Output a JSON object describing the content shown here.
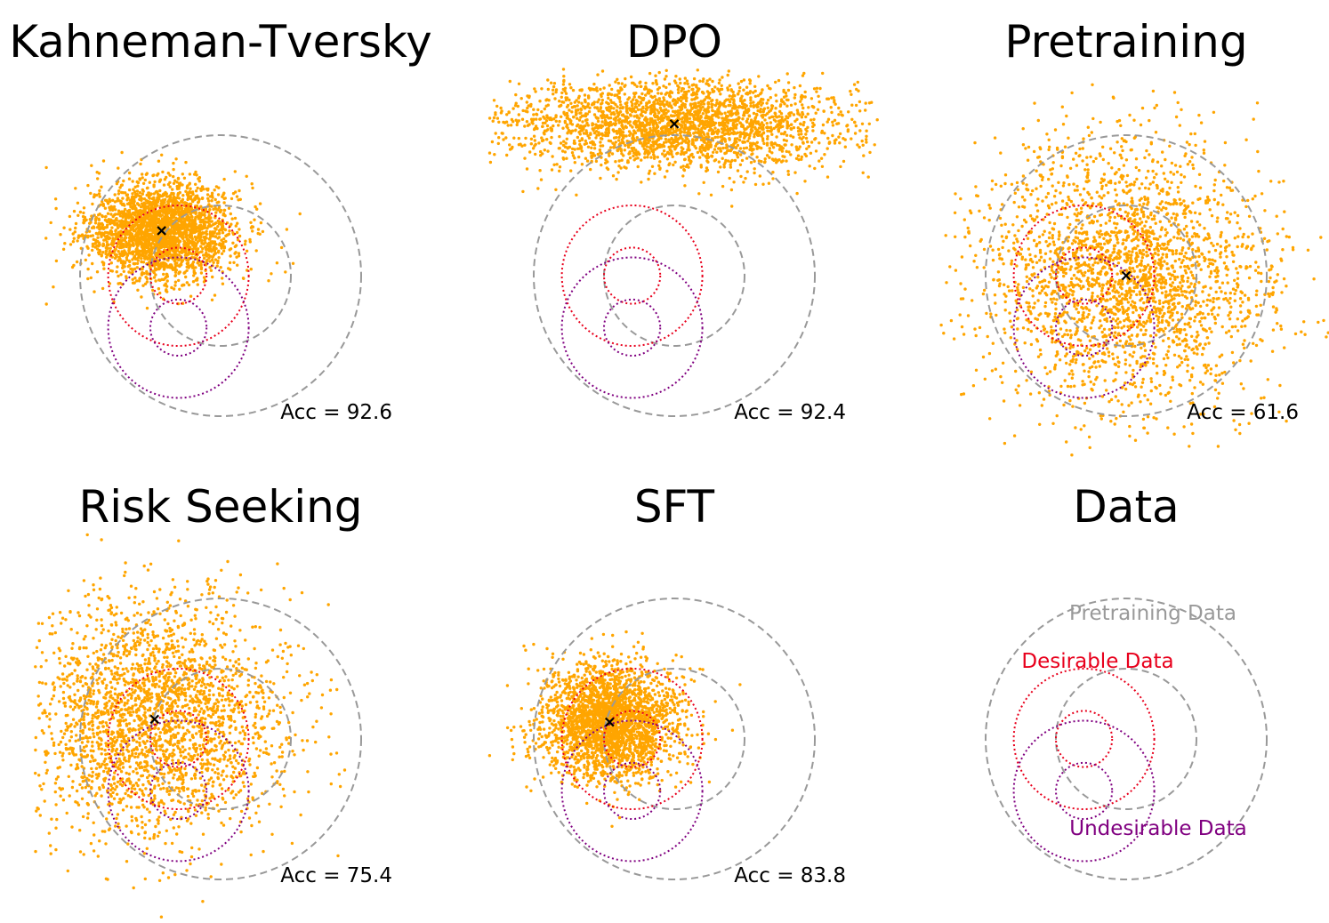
{
  "chart_data": [
    {
      "type": "scatter",
      "title": "Kahneman-Tversky",
      "accuracy_text": "Acc = 92.6",
      "accuracy": 92.6,
      "samples": {
        "center": [
          -0.42,
          0.32
        ],
        "spread": [
          0.26,
          0.17
        ],
        "n": 2600
      },
      "model_mean": [
        -0.42,
        0.32
      ]
    },
    {
      "type": "scatter",
      "title": "DPO",
      "accuracy_text": "Acc = 92.4",
      "accuracy": 92.4,
      "samples": {
        "center": [
          0.0,
          1.08
        ],
        "spread": [
          0.6,
          0.16
        ],
        "n": 2600
      },
      "model_mean": [
        0.0,
        1.08
      ]
    },
    {
      "type": "scatter",
      "title": "Pretraining",
      "accuracy_text": "Acc = 61.6",
      "accuracy": 61.6,
      "samples": {
        "center": [
          0.0,
          0.0
        ],
        "spread": [
          0.5,
          0.48
        ],
        "n": 2600
      },
      "model_mean": [
        0.0,
        0.0
      ]
    },
    {
      "type": "scatter",
      "title": "Risk Seeking",
      "accuracy_text": "Acc = 75.4",
      "accuracy": 75.4,
      "samples": {
        "center": [
          -0.47,
          0.14
        ],
        "spread": [
          0.45,
          0.42
        ],
        "n": 2600
      },
      "model_mean": [
        -0.47,
        0.14
      ]
    },
    {
      "type": "scatter",
      "title": "SFT",
      "accuracy_text": "Acc = 83.8",
      "accuracy": 83.8,
      "samples": {
        "center": [
          -0.46,
          0.12
        ],
        "spread": [
          0.24,
          0.2
        ],
        "n": 2600
      },
      "model_mean": [
        -0.46,
        0.12
      ]
    },
    {
      "type": "scatter",
      "title": "Data",
      "legend": {
        "pretraining": "Pretraining Data",
        "desirable": "Desirable Data",
        "undesirable": "Undesirable Data"
      }
    }
  ],
  "regions": {
    "pretraining": {
      "center": [
        0.0,
        0.0
      ],
      "radius": 1.0
    },
    "pretraining_inner": {
      "center": [
        0.0,
        0.0
      ],
      "radius": 0.5
    },
    "desirable": [
      {
        "center": [
          -0.3,
          0.0
        ],
        "radius": 0.5
      },
      {
        "center": [
          -0.3,
          0.0
        ],
        "radius": 0.2
      }
    ],
    "undesirable": [
      {
        "center": [
          -0.3,
          -0.37
        ],
        "radius": 0.5
      },
      {
        "center": [
          -0.3,
          -0.37
        ],
        "radius": 0.2
      }
    ]
  },
  "colors": {
    "points": "#FFA500",
    "pretraining": "#999999",
    "desirable": "#E8001C",
    "undesirable": "#800080",
    "marker": "#000000"
  }
}
